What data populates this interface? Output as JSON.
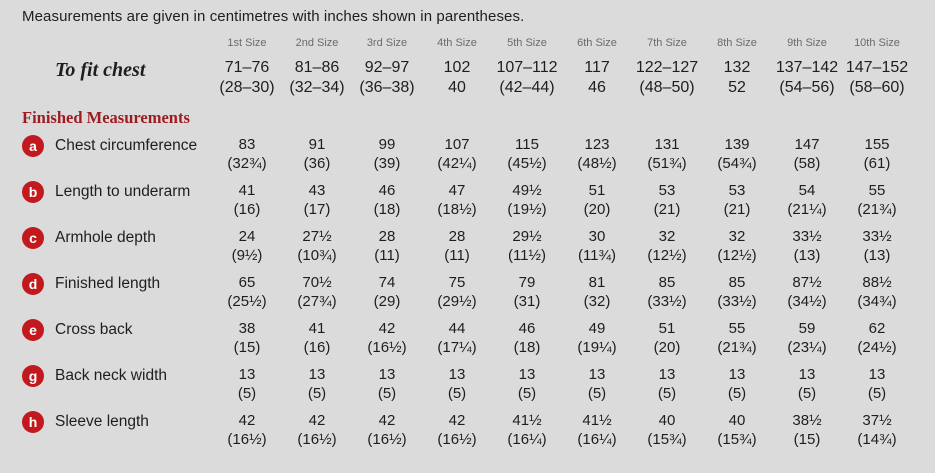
{
  "intro": "Measurements are given in centimetres with inches shown in parentheses.",
  "colors": {
    "background": "#dbdbdb",
    "badge_red": "#c2191f",
    "heading_red": "#9e1b1f",
    "size_header_gray": "#6b6b6b",
    "text": "#1e1e1e"
  },
  "table": {
    "size_headers": [
      "1st Size",
      "2nd Size",
      "3rd Size",
      "4th Size",
      "5th Size",
      "6th Size",
      "7th Size",
      "8th Size",
      "9th Size",
      "10th Size"
    ],
    "to_fit": {
      "label": "To fit chest",
      "values": [
        {
          "cm": "71–76",
          "in": "(28–30)"
        },
        {
          "cm": "81–86",
          "in": "(32–34)"
        },
        {
          "cm": "92–97",
          "in": "(36–38)"
        },
        {
          "cm": "102",
          "in": "40"
        },
        {
          "cm": "107–112",
          "in": "(42–44)"
        },
        {
          "cm": "117",
          "in": "46"
        },
        {
          "cm": "122–127",
          "in": "(48–50)"
        },
        {
          "cm": "132",
          "in": "52"
        },
        {
          "cm": "137–142",
          "in": "(54–56)"
        },
        {
          "cm": "147–152",
          "in": "(58–60)"
        }
      ]
    },
    "section_heading": "Finished Measurements",
    "rows": [
      {
        "key": "a",
        "label": "Chest circumference",
        "values": [
          {
            "cm": "83",
            "in": "(32¾)"
          },
          {
            "cm": "91",
            "in": "(36)"
          },
          {
            "cm": "99",
            "in": "(39)"
          },
          {
            "cm": "107",
            "in": "(42¼)"
          },
          {
            "cm": "115",
            "in": "(45½)"
          },
          {
            "cm": "123",
            "in": "(48½)"
          },
          {
            "cm": "131",
            "in": "(51¾)"
          },
          {
            "cm": "139",
            "in": "(54¾)"
          },
          {
            "cm": "147",
            "in": "(58)"
          },
          {
            "cm": "155",
            "in": "(61)"
          }
        ]
      },
      {
        "key": "b",
        "label": "Length to underarm",
        "values": [
          {
            "cm": "41",
            "in": "(16)"
          },
          {
            "cm": "43",
            "in": "(17)"
          },
          {
            "cm": "46",
            "in": "(18)"
          },
          {
            "cm": "47",
            "in": "(18½)"
          },
          {
            "cm": "49½",
            "in": "(19½)"
          },
          {
            "cm": "51",
            "in": "(20)"
          },
          {
            "cm": "53",
            "in": "(21)"
          },
          {
            "cm": "53",
            "in": "(21)"
          },
          {
            "cm": "54",
            "in": "(21¼)"
          },
          {
            "cm": "55",
            "in": "(21¾)"
          }
        ]
      },
      {
        "key": "c",
        "label": "Armhole depth",
        "values": [
          {
            "cm": "24",
            "in": "(9½)"
          },
          {
            "cm": "27½",
            "in": "(10¾)"
          },
          {
            "cm": "28",
            "in": "(11)"
          },
          {
            "cm": "28",
            "in": "(11)"
          },
          {
            "cm": "29½",
            "in": "(11½)"
          },
          {
            "cm": "30",
            "in": "(11¾)"
          },
          {
            "cm": "32",
            "in": "(12½)"
          },
          {
            "cm": "32",
            "in": "(12½)"
          },
          {
            "cm": "33½",
            "in": "(13)"
          },
          {
            "cm": "33½",
            "in": "(13)"
          }
        ]
      },
      {
        "key": "d",
        "label": "Finished length",
        "values": [
          {
            "cm": "65",
            "in": "(25½)"
          },
          {
            "cm": "70½",
            "in": "(27¾)"
          },
          {
            "cm": "74",
            "in": "(29)"
          },
          {
            "cm": "75",
            "in": "(29½)"
          },
          {
            "cm": "79",
            "in": "(31)"
          },
          {
            "cm": "81",
            "in": "(32)"
          },
          {
            "cm": "85",
            "in": "(33½)"
          },
          {
            "cm": "85",
            "in": "(33½)"
          },
          {
            "cm": "87½",
            "in": "(34½)"
          },
          {
            "cm": "88½",
            "in": "(34¾)"
          }
        ]
      },
      {
        "key": "e",
        "label": "Cross back",
        "values": [
          {
            "cm": "38",
            "in": "(15)"
          },
          {
            "cm": "41",
            "in": "(16)"
          },
          {
            "cm": "42",
            "in": "(16½)"
          },
          {
            "cm": "44",
            "in": "(17¼)"
          },
          {
            "cm": "46",
            "in": "(18)"
          },
          {
            "cm": "49",
            "in": "(19¼)"
          },
          {
            "cm": "51",
            "in": "(20)"
          },
          {
            "cm": "55",
            "in": "(21¾)"
          },
          {
            "cm": "59",
            "in": "(23¼)"
          },
          {
            "cm": "62",
            "in": "(24½)"
          }
        ]
      },
      {
        "key": "g",
        "label": "Back neck width",
        "values": [
          {
            "cm": "13",
            "in": "(5)"
          },
          {
            "cm": "13",
            "in": "(5)"
          },
          {
            "cm": "13",
            "in": "(5)"
          },
          {
            "cm": "13",
            "in": "(5)"
          },
          {
            "cm": "13",
            "in": "(5)"
          },
          {
            "cm": "13",
            "in": "(5)"
          },
          {
            "cm": "13",
            "in": "(5)"
          },
          {
            "cm": "13",
            "in": "(5)"
          },
          {
            "cm": "13",
            "in": "(5)"
          },
          {
            "cm": "13",
            "in": "(5)"
          }
        ]
      },
      {
        "key": "h",
        "label": "Sleeve length",
        "values": [
          {
            "cm": "42",
            "in": "(16½)"
          },
          {
            "cm": "42",
            "in": "(16½)"
          },
          {
            "cm": "42",
            "in": "(16½)"
          },
          {
            "cm": "42",
            "in": "(16½)"
          },
          {
            "cm": "41½",
            "in": "(16¼)"
          },
          {
            "cm": "41½",
            "in": "(16¼)"
          },
          {
            "cm": "40",
            "in": "(15¾)"
          },
          {
            "cm": "40",
            "in": "(15¾)"
          },
          {
            "cm": "38½",
            "in": "(15)"
          },
          {
            "cm": "37½",
            "in": "(14¾)"
          }
        ]
      }
    ]
  }
}
